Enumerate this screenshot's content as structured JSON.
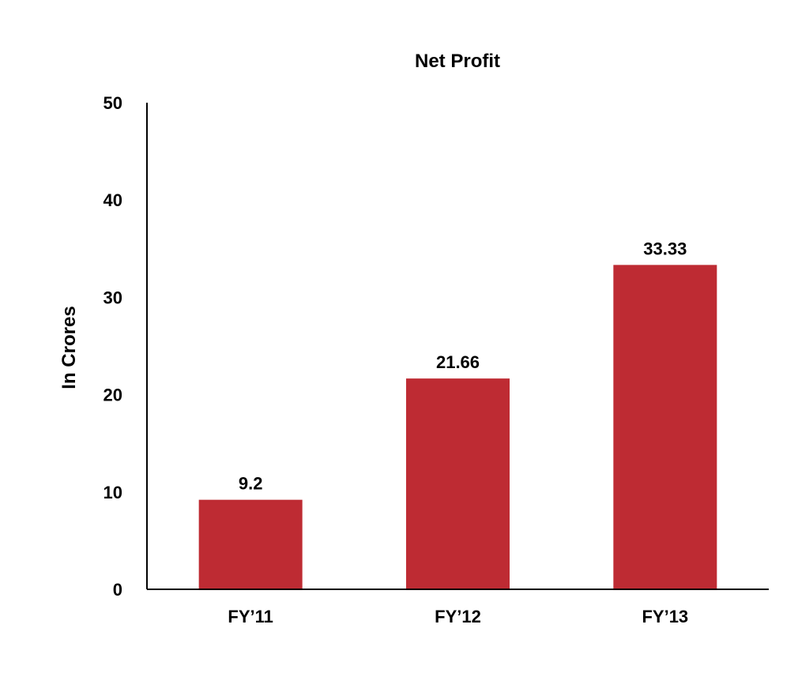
{
  "chart_data": {
    "type": "bar",
    "title": "Net Profit",
    "xlabel": "",
    "ylabel": "In Crores",
    "categories": [
      "FY’11",
      "FY’12",
      "FY’13"
    ],
    "values": [
      9.2,
      21.66,
      33.33
    ],
    "data_labels": [
      "9.2",
      "21.66",
      "33.33"
    ],
    "ylim": [
      0,
      50
    ],
    "yticks": [
      0,
      10,
      20,
      30,
      40,
      50
    ],
    "grid": false,
    "legend": "none",
    "bar_color": "#BE2B33"
  }
}
